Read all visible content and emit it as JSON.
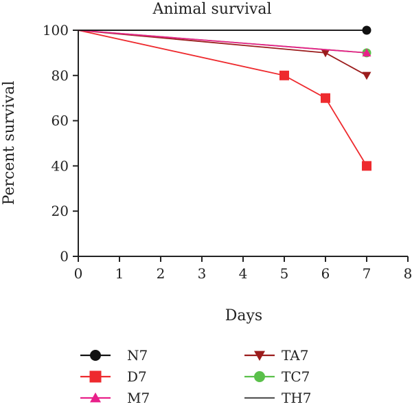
{
  "chart_data": {
    "type": "line",
    "title": "Animal survival",
    "xlabel": "Days",
    "ylabel": "Percent survival",
    "xlim": [
      0,
      8
    ],
    "ylim": [
      0,
      100
    ],
    "xticks": [
      0,
      1,
      2,
      3,
      4,
      5,
      6,
      7,
      8
    ],
    "yticks": [
      0,
      20,
      40,
      60,
      80,
      100
    ],
    "grid": false,
    "legend_position": "bottom",
    "series": [
      {
        "name": "N7",
        "color": "#111111",
        "marker": "circle",
        "x": [
          0,
          7
        ],
        "y": [
          100,
          100
        ]
      },
      {
        "name": "D7",
        "color": "#ee2a2e",
        "marker": "square",
        "x": [
          0,
          5,
          6,
          7
        ],
        "y": [
          100,
          80,
          70,
          40
        ]
      },
      {
        "name": "M7",
        "color": "#e8208a",
        "marker": "triangle-up",
        "x": [
          0,
          7
        ],
        "y": [
          100,
          90
        ]
      },
      {
        "name": "TA7",
        "color": "#9b1c1c",
        "marker": "triangle-down",
        "x": [
          0,
          6,
          7
        ],
        "y": [
          100,
          90,
          80
        ]
      },
      {
        "name": "TC7",
        "color": "#5ac04a",
        "marker": "circle",
        "x": [
          0,
          7
        ],
        "y": [
          100,
          90
        ]
      },
      {
        "name": "TH7",
        "color": "#555555",
        "marker": "none",
        "x": [
          0,
          7
        ],
        "y": [
          100,
          100
        ]
      }
    ]
  }
}
